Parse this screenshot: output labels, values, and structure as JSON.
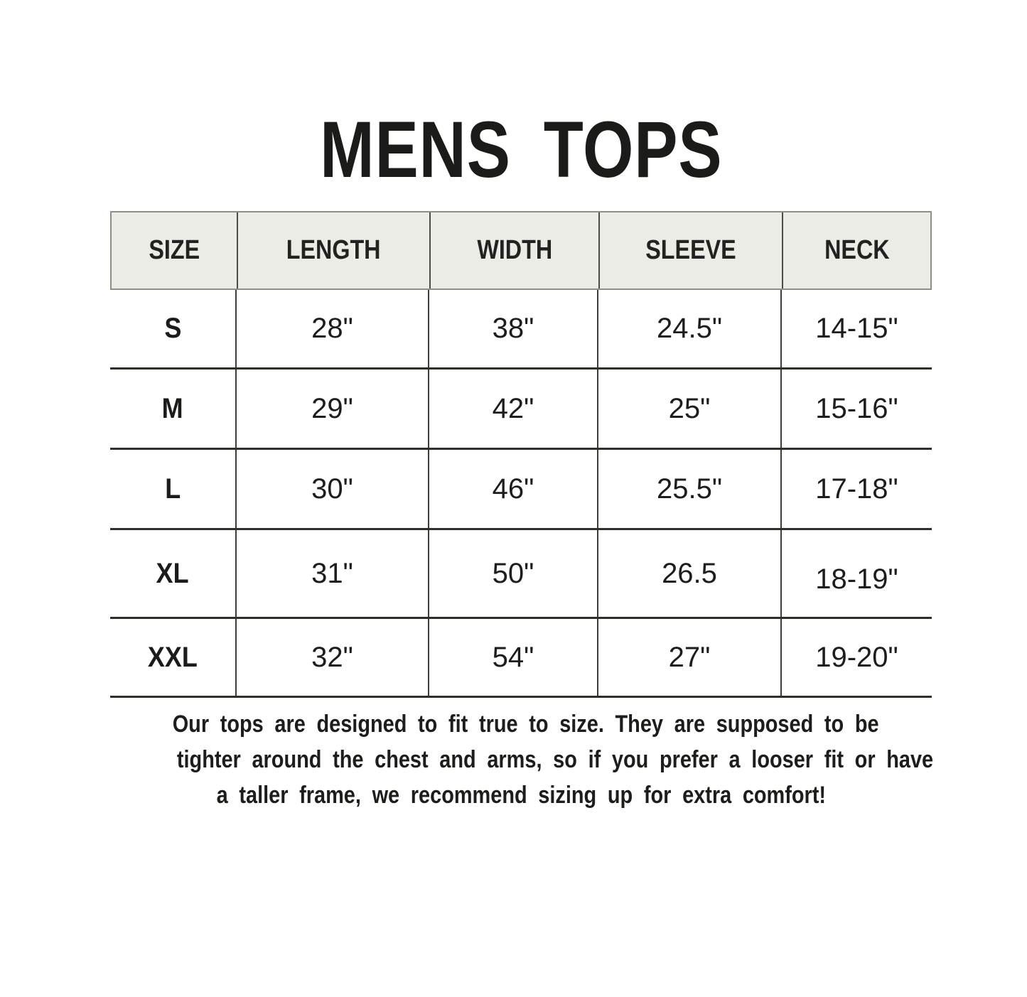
{
  "title": "MENS TOPS",
  "table": {
    "headers": [
      "SIZE",
      "LENGTH",
      "WIDTH",
      "SLEEVE",
      "NECK"
    ],
    "rows": [
      {
        "size": "S",
        "length": "28\"",
        "width": "38\"",
        "sleeve": "24.5\"",
        "neck": "14-15\""
      },
      {
        "size": "M",
        "length": "29\"",
        "width": "42\"",
        "sleeve": "25\"",
        "neck": "15-16\""
      },
      {
        "size": "L",
        "length": "30\"",
        "width": "46\"",
        "sleeve": "25.5\"",
        "neck": "17-18\""
      },
      {
        "size": "XL",
        "length": "31\"",
        "width": "50\"",
        "sleeve": "26.5",
        "neck": "18-19\""
      },
      {
        "size": "XXL",
        "length": "32\"",
        "width": "54\"",
        "sleeve": "27\"",
        "neck": "19-20\""
      }
    ]
  },
  "footer": {
    "lines": [
      "Our tops are designed to fit true to size. They are supposed to be",
      "tighter around the chest and arms, so if you prefer a looser fit or have",
      "a taller frame, we recommend sizing up for extra comfort!"
    ]
  },
  "colors": {
    "page_background": "#ffffff",
    "header_background": "#ecece6",
    "header_border": "#8f8f89",
    "header_divider": "#4c4c47",
    "column_divider": "#3d3d39",
    "row_divider": "#2e2e2b",
    "text": "#1d1d1b"
  }
}
